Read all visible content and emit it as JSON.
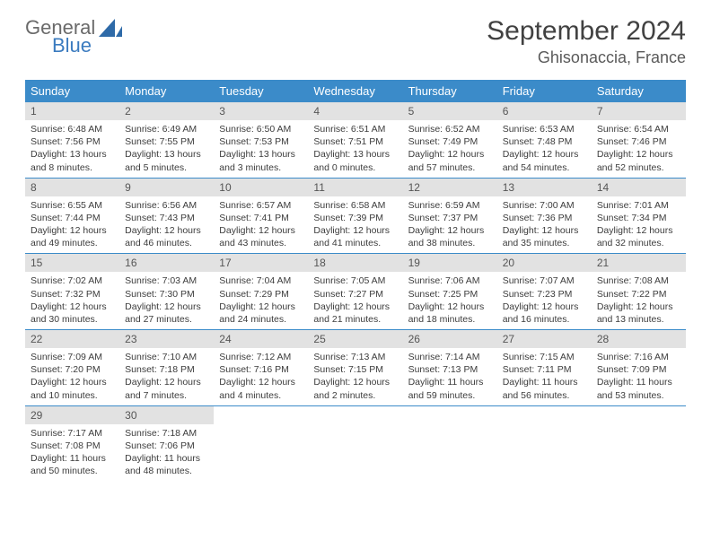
{
  "logo": {
    "word1": "General",
    "word2": "Blue"
  },
  "title": "September 2024",
  "location": "Ghisonaccia, France",
  "colors": {
    "header_bg": "#3b8bc9",
    "header_fg": "#ffffff",
    "band_bg": "#e2e2e2",
    "rule": "#3b8bc9",
    "logo_gray": "#6a6a6a",
    "logo_blue": "#3b7bbf"
  },
  "day_headers": [
    "Sunday",
    "Monday",
    "Tuesday",
    "Wednesday",
    "Thursday",
    "Friday",
    "Saturday"
  ],
  "weeks": [
    [
      {
        "n": "1",
        "sr": "6:48 AM",
        "ss": "7:56 PM",
        "dl": "13 hours and 8 minutes."
      },
      {
        "n": "2",
        "sr": "6:49 AM",
        "ss": "7:55 PM",
        "dl": "13 hours and 5 minutes."
      },
      {
        "n": "3",
        "sr": "6:50 AM",
        "ss": "7:53 PM",
        "dl": "13 hours and 3 minutes."
      },
      {
        "n": "4",
        "sr": "6:51 AM",
        "ss": "7:51 PM",
        "dl": "13 hours and 0 minutes."
      },
      {
        "n": "5",
        "sr": "6:52 AM",
        "ss": "7:49 PM",
        "dl": "12 hours and 57 minutes."
      },
      {
        "n": "6",
        "sr": "6:53 AM",
        "ss": "7:48 PM",
        "dl": "12 hours and 54 minutes."
      },
      {
        "n": "7",
        "sr": "6:54 AM",
        "ss": "7:46 PM",
        "dl": "12 hours and 52 minutes."
      }
    ],
    [
      {
        "n": "8",
        "sr": "6:55 AM",
        "ss": "7:44 PM",
        "dl": "12 hours and 49 minutes."
      },
      {
        "n": "9",
        "sr": "6:56 AM",
        "ss": "7:43 PM",
        "dl": "12 hours and 46 minutes."
      },
      {
        "n": "10",
        "sr": "6:57 AM",
        "ss": "7:41 PM",
        "dl": "12 hours and 43 minutes."
      },
      {
        "n": "11",
        "sr": "6:58 AM",
        "ss": "7:39 PM",
        "dl": "12 hours and 41 minutes."
      },
      {
        "n": "12",
        "sr": "6:59 AM",
        "ss": "7:37 PM",
        "dl": "12 hours and 38 minutes."
      },
      {
        "n": "13",
        "sr": "7:00 AM",
        "ss": "7:36 PM",
        "dl": "12 hours and 35 minutes."
      },
      {
        "n": "14",
        "sr": "7:01 AM",
        "ss": "7:34 PM",
        "dl": "12 hours and 32 minutes."
      }
    ],
    [
      {
        "n": "15",
        "sr": "7:02 AM",
        "ss": "7:32 PM",
        "dl": "12 hours and 30 minutes."
      },
      {
        "n": "16",
        "sr": "7:03 AM",
        "ss": "7:30 PM",
        "dl": "12 hours and 27 minutes."
      },
      {
        "n": "17",
        "sr": "7:04 AM",
        "ss": "7:29 PM",
        "dl": "12 hours and 24 minutes."
      },
      {
        "n": "18",
        "sr": "7:05 AM",
        "ss": "7:27 PM",
        "dl": "12 hours and 21 minutes."
      },
      {
        "n": "19",
        "sr": "7:06 AM",
        "ss": "7:25 PM",
        "dl": "12 hours and 18 minutes."
      },
      {
        "n": "20",
        "sr": "7:07 AM",
        "ss": "7:23 PM",
        "dl": "12 hours and 16 minutes."
      },
      {
        "n": "21",
        "sr": "7:08 AM",
        "ss": "7:22 PM",
        "dl": "12 hours and 13 minutes."
      }
    ],
    [
      {
        "n": "22",
        "sr": "7:09 AM",
        "ss": "7:20 PM",
        "dl": "12 hours and 10 minutes."
      },
      {
        "n": "23",
        "sr": "7:10 AM",
        "ss": "7:18 PM",
        "dl": "12 hours and 7 minutes."
      },
      {
        "n": "24",
        "sr": "7:12 AM",
        "ss": "7:16 PM",
        "dl": "12 hours and 4 minutes."
      },
      {
        "n": "25",
        "sr": "7:13 AM",
        "ss": "7:15 PM",
        "dl": "12 hours and 2 minutes."
      },
      {
        "n": "26",
        "sr": "7:14 AM",
        "ss": "7:13 PM",
        "dl": "11 hours and 59 minutes."
      },
      {
        "n": "27",
        "sr": "7:15 AM",
        "ss": "7:11 PM",
        "dl": "11 hours and 56 minutes."
      },
      {
        "n": "28",
        "sr": "7:16 AM",
        "ss": "7:09 PM",
        "dl": "11 hours and 53 minutes."
      }
    ],
    [
      {
        "n": "29",
        "sr": "7:17 AM",
        "ss": "7:08 PM",
        "dl": "11 hours and 50 minutes."
      },
      {
        "n": "30",
        "sr": "7:18 AM",
        "ss": "7:06 PM",
        "dl": "11 hours and 48 minutes."
      },
      null,
      null,
      null,
      null,
      null
    ]
  ],
  "labels": {
    "sunrise": "Sunrise:",
    "sunset": "Sunset:",
    "daylight": "Daylight:"
  }
}
